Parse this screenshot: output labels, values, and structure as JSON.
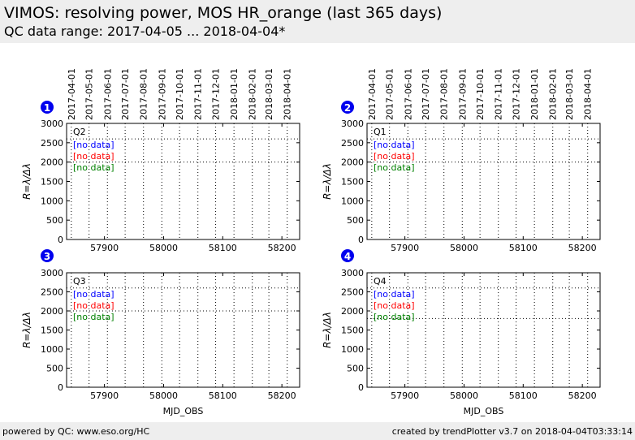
{
  "header": {
    "title": "VIMOS: resolving power, MOS HR_orange (last 365 days)",
    "subtitle": "QC data range: 2017-04-05 ... 2018-04-04*"
  },
  "footer": {
    "left": "powered by QC: www.eso.org/HC",
    "right": "created by trendPlotter v3.7 on 2018-04-04T03:33:14"
  },
  "colors": {
    "no_data_1": "#0000ff",
    "no_data_2": "#ff0000",
    "no_data_3": "#008000",
    "badge": "#0000ee"
  },
  "chart_data": [
    {
      "type": "scatter",
      "panel_number": "1",
      "quadrant": "Q2",
      "xlabel": "",
      "ylabel": "R=λ/Δλ",
      "xlim": [
        57836,
        58230
      ],
      "ylim": [
        0,
        3000
      ],
      "yticks": [
        0,
        500,
        1000,
        1500,
        2000,
        2500,
        3000
      ],
      "xticks": [
        57900,
        58000,
        58100,
        58200
      ],
      "date_ticks": [
        "2017-04-01",
        "2017-05-01",
        "2017-06-01",
        "2017-07-01",
        "2017-08-01",
        "2017-09-01",
        "2017-10-01",
        "2017-11-01",
        "2017-12-01",
        "2018-01-01",
        "2018-02-01",
        "2018-03-01",
        "2018-04-01"
      ],
      "date_ticks_mjd": [
        57844,
        57874,
        57905,
        57935,
        57966,
        57997,
        58027,
        58058,
        58088,
        58119,
        58150,
        58178,
        58209
      ],
      "reference_lines": [
        2600,
        2000
      ],
      "series": [],
      "annotations": [
        "[no data]",
        "[no data]",
        "[no data]"
      ]
    },
    {
      "type": "scatter",
      "panel_number": "2",
      "quadrant": "Q1",
      "xlabel": "",
      "ylabel": "R=λ/Δλ",
      "xlim": [
        57836,
        58230
      ],
      "ylim": [
        0,
        3000
      ],
      "yticks": [
        0,
        500,
        1000,
        1500,
        2000,
        2500,
        3000
      ],
      "xticks": [
        57900,
        58000,
        58100,
        58200
      ],
      "date_ticks": [
        "2017-04-01",
        "2017-05-01",
        "2017-06-01",
        "2017-07-01",
        "2017-08-01",
        "2017-09-01",
        "2017-10-01",
        "2017-11-01",
        "2017-12-01",
        "2018-01-01",
        "2018-02-01",
        "2018-03-01",
        "2018-04-01"
      ],
      "date_ticks_mjd": [
        57844,
        57874,
        57905,
        57935,
        57966,
        57997,
        58027,
        58058,
        58088,
        58119,
        58150,
        58178,
        58209
      ],
      "reference_lines": [
        2600,
        2000
      ],
      "series": [],
      "annotations": [
        "[no data]",
        "[no data]",
        "[no data]"
      ]
    },
    {
      "type": "scatter",
      "panel_number": "3",
      "quadrant": "Q3",
      "xlabel": "MJD_OBS",
      "ylabel": "R=λ/Δλ",
      "xlim": [
        57836,
        58230
      ],
      "ylim": [
        0,
        3000
      ],
      "yticks": [
        0,
        500,
        1000,
        1500,
        2000,
        2500,
        3000
      ],
      "xticks": [
        57900,
        58000,
        58100,
        58200
      ],
      "date_ticks": [],
      "date_ticks_mjd": [
        57844,
        57874,
        57905,
        57935,
        57966,
        57997,
        58027,
        58058,
        58088,
        58119,
        58150,
        58178,
        58209
      ],
      "reference_lines": [
        2600,
        2000
      ],
      "series": [],
      "annotations": [
        "[no data]",
        "[no data]",
        "[no data]"
      ]
    },
    {
      "type": "scatter",
      "panel_number": "4",
      "quadrant": "Q4",
      "xlabel": "MJD_OBS",
      "ylabel": "R=λ/Δλ",
      "xlim": [
        57836,
        58230
      ],
      "ylim": [
        0,
        3000
      ],
      "yticks": [
        0,
        500,
        1000,
        1500,
        2000,
        2500,
        3000
      ],
      "xticks": [
        57900,
        58000,
        58100,
        58200
      ],
      "date_ticks": [],
      "date_ticks_mjd": [
        57844,
        57874,
        57905,
        57935,
        57966,
        57997,
        58027,
        58058,
        58088,
        58119,
        58150,
        58178,
        58209
      ],
      "reference_lines": [
        2600,
        1800
      ],
      "series": [],
      "annotations": [
        "[no data]",
        "[no data]",
        "[no data]"
      ]
    }
  ]
}
